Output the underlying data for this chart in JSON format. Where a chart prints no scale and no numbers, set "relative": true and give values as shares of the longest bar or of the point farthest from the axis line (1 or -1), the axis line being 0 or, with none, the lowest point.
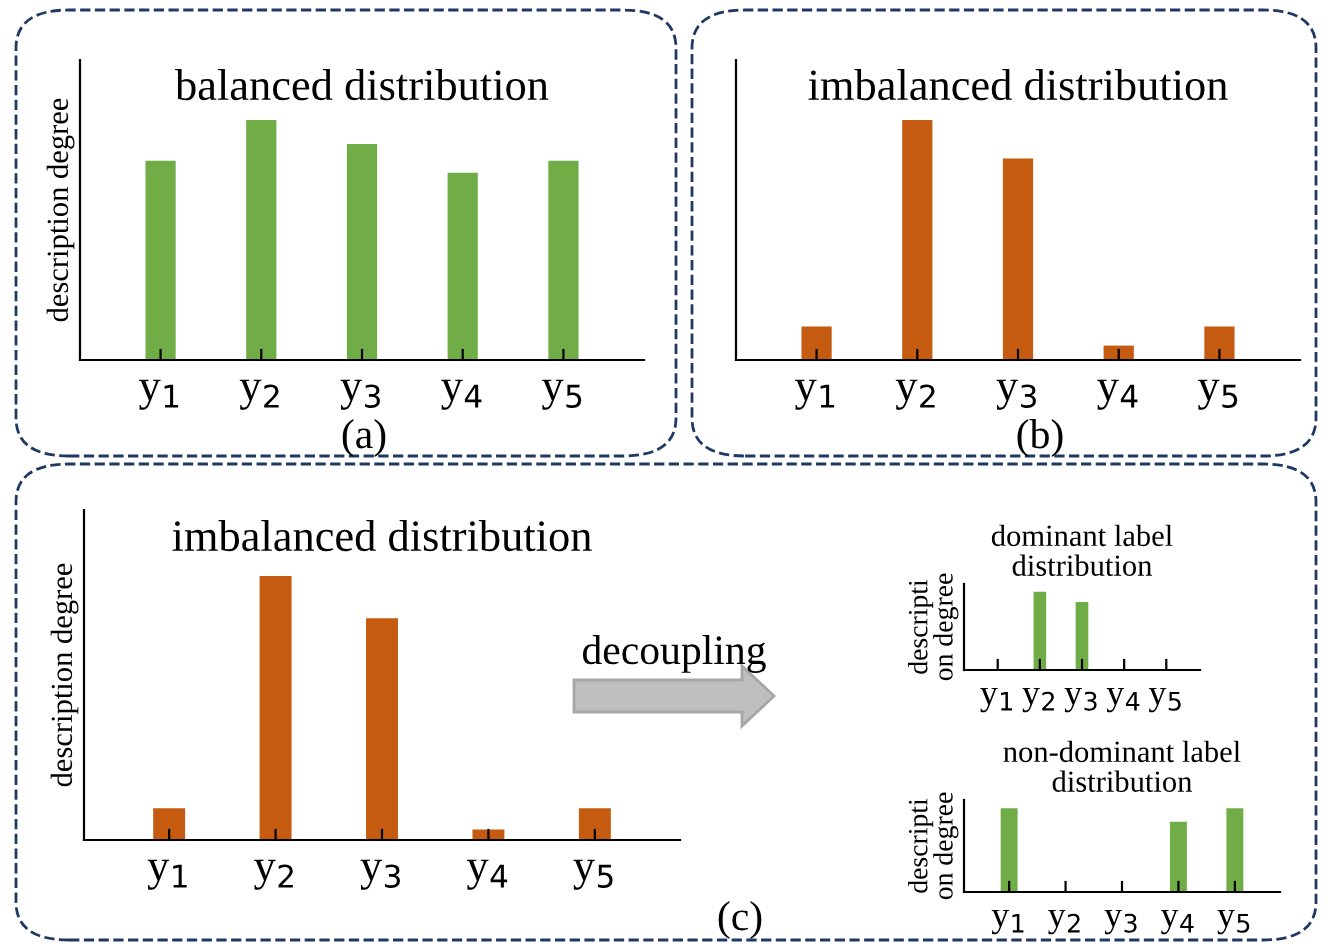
{
  "chart_data": [
    {
      "type": "bar",
      "title": "balanced distribution",
      "ylabel": "description degree",
      "categories": [
        "y$_{1}$",
        "y$_{2}$",
        "y$_{3}$",
        "y$_{4}$",
        "y$_{5}$"
      ],
      "relative": true,
      "values": [
        0.83,
        1,
        0.9,
        0.78,
        0.83
      ],
      "color": "#70ad47",
      "annotations": [
        "(a)"
      ]
    },
    {
      "type": "bar",
      "title": "imbalanced distribution",
      "categories": [
        "y$_{1}$",
        "y$_{2}$",
        "y$_{3}$",
        "y$_{4}$",
        "y$_{5}$"
      ],
      "relative": true,
      "values": [
        0.14,
        1,
        0.84,
        0.06,
        0.14
      ],
      "color": "#c55a11",
      "annotations": [
        "(b)"
      ]
    },
    {
      "type": "bar",
      "title": "imbalanced distribution",
      "ylabel": "description degree",
      "categories": [
        "y$_{1}$",
        "y$_{2}$",
        "y$_{3}$",
        "y$_{4}$",
        "y$_{5}$"
      ],
      "relative": true,
      "values": [
        0.12,
        1,
        0.84,
        0.04,
        0.12
      ],
      "color": "#c55a11",
      "annotations": [
        "(c)",
        "decoupling"
      ]
    },
    {
      "type": "bar",
      "title": "dominant label distribution",
      "ylabel": "description degree",
      "categories": [
        "y$_{1}$",
        "y$_{2}$",
        "y$_{3}$",
        "y$_{4}$",
        "y$_{5}$"
      ],
      "relative": true,
      "values": [
        0,
        1,
        0.87,
        0,
        0
      ],
      "color": "#70ad47"
    },
    {
      "type": "bar",
      "title": "non-dominant label distribution",
      "ylabel": "description degree",
      "categories": [
        "y$_{1}$",
        "y$_{2}$",
        "y$_{3}$",
        "y$_{4}$",
        "y$_{5}$"
      ],
      "relative": true,
      "values": [
        1,
        0,
        0,
        0.84,
        1
      ],
      "color": "#70ad47"
    }
  ]
}
